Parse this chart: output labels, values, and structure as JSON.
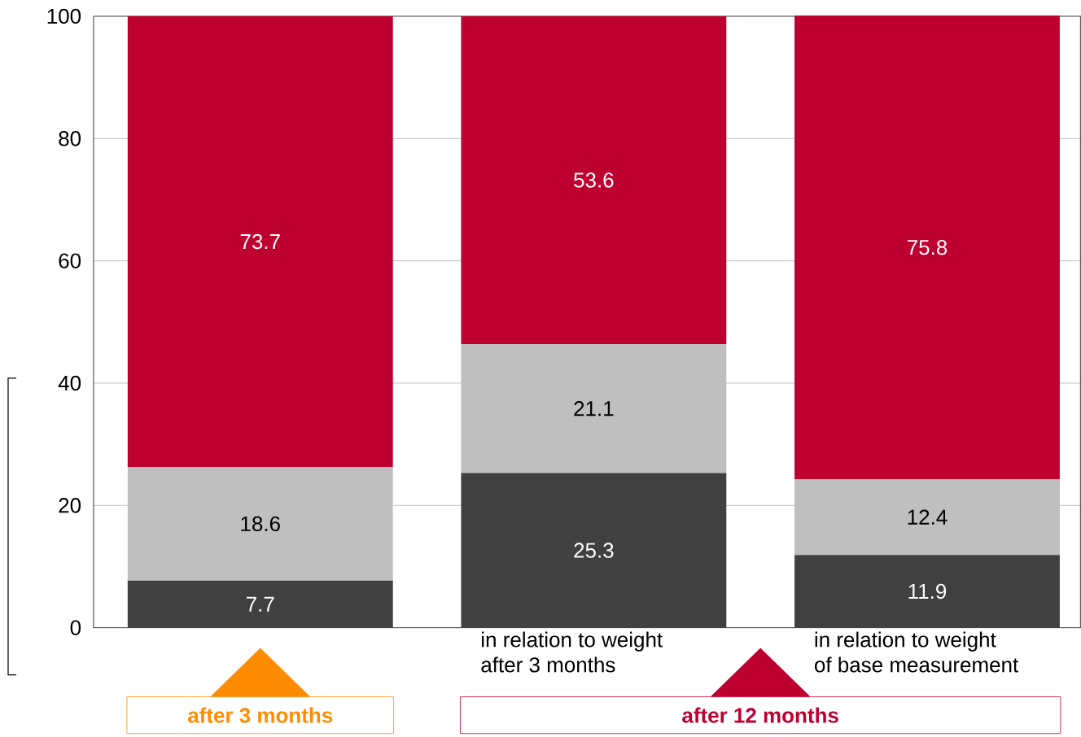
{
  "chart_data": {
    "type": "bar",
    "stacked": true,
    "categories": [
      null,
      "in relation to weight\nafter 3 months",
      "in relation to weight\nof base measurement"
    ],
    "series": [
      {
        "color": "#404040",
        "values": [
          7.7,
          25.3,
          11.9
        ]
      },
      {
        "color": "#bfbfbf",
        "values": [
          18.6,
          21.1,
          12.4
        ]
      },
      {
        "color": "#be0030",
        "values": [
          73.7,
          53.6,
          75.8
        ]
      }
    ],
    "ylim": [
      0,
      100
    ],
    "yticks": [
      0,
      20,
      40,
      60,
      80,
      100
    ],
    "grid": "y",
    "data_labels": true,
    "annotations": [
      "after 3 months",
      "after 12 months"
    ]
  }
}
